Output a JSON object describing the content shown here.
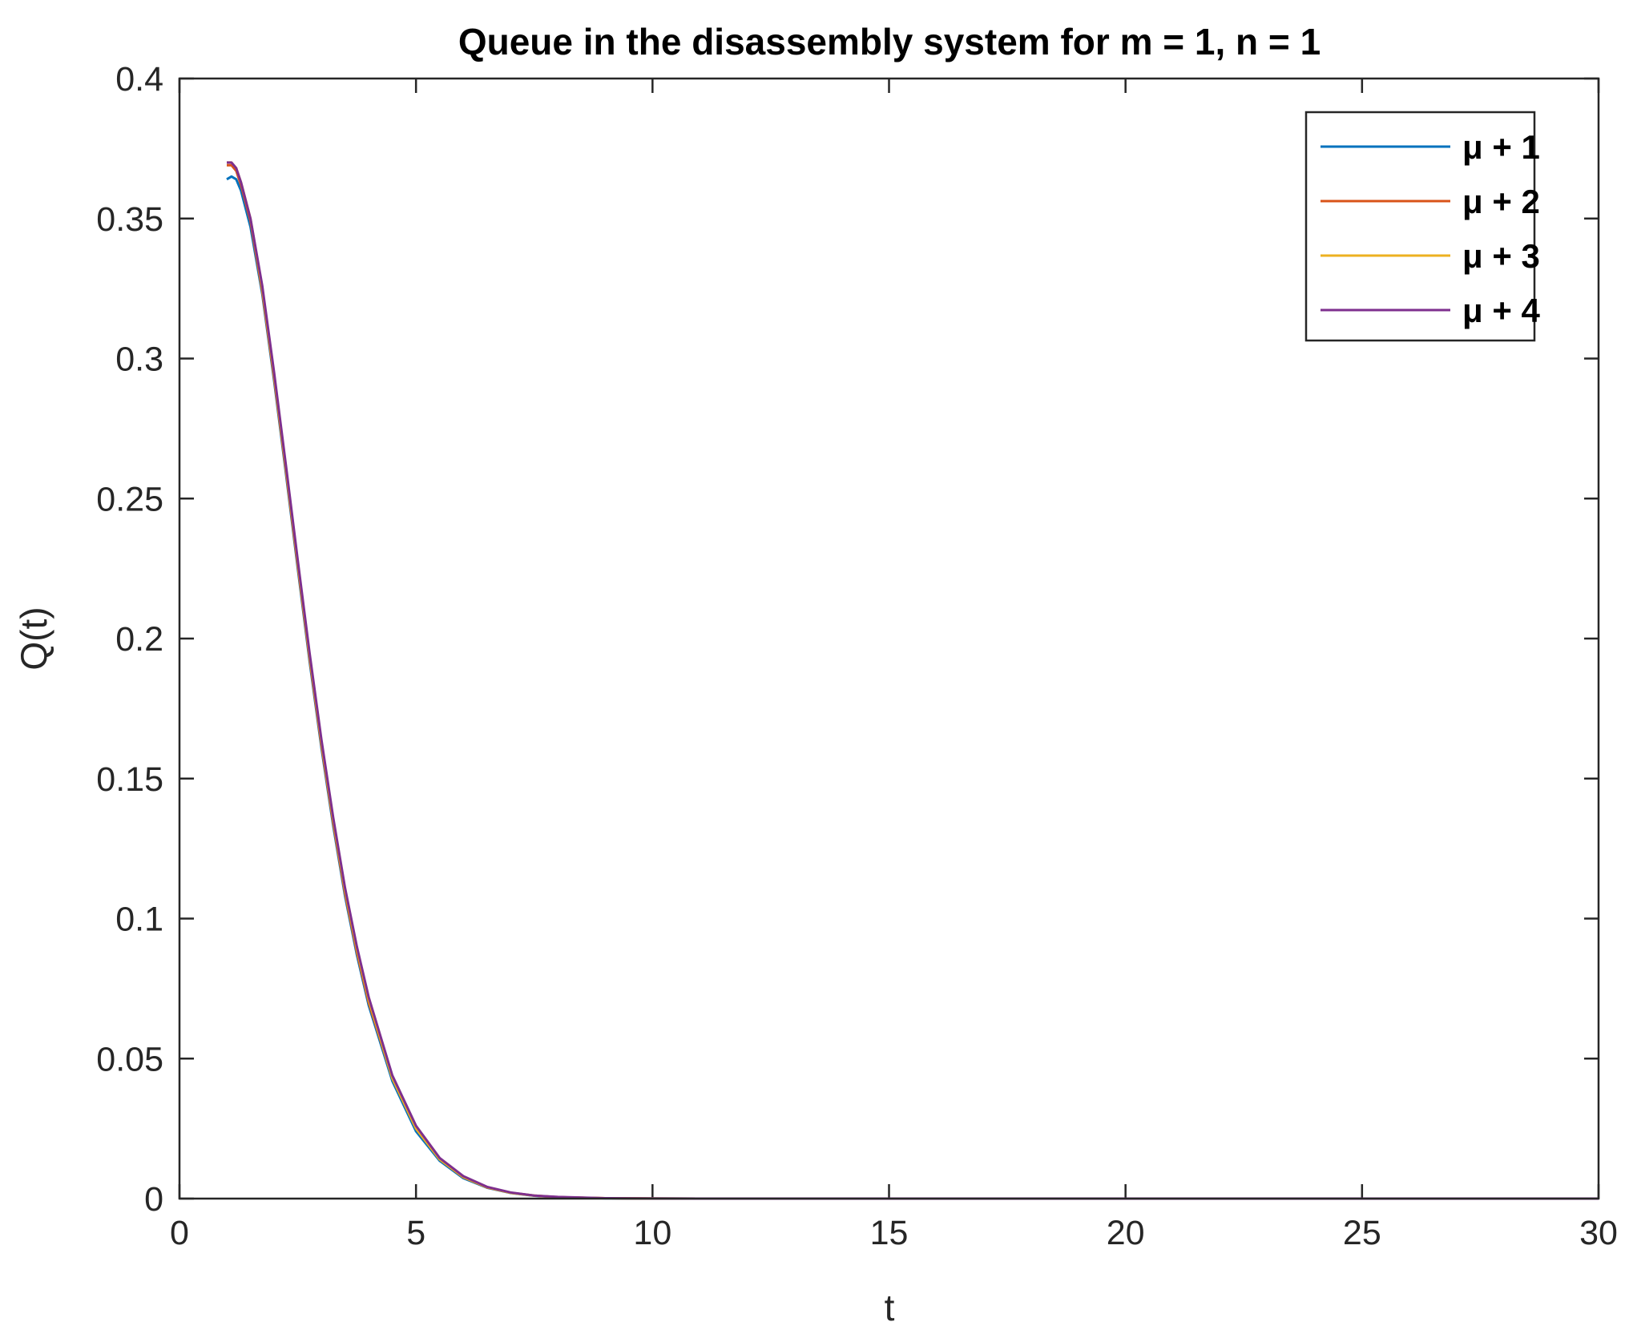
{
  "chart_data": {
    "type": "line",
    "title": "Queue in the disassembly system for m = 1, n = 1",
    "xlabel": "t",
    "ylabel": "Q(t)",
    "xlim": [
      0,
      30
    ],
    "ylim": [
      0,
      0.4
    ],
    "xticks": [
      0,
      5,
      10,
      15,
      20,
      25,
      30
    ],
    "xtick_labels": [
      "0",
      "5",
      "10",
      "15",
      "20",
      "25",
      "30"
    ],
    "yticks": [
      0,
      0.05,
      0.1,
      0.15,
      0.2,
      0.25,
      0.3,
      0.35,
      0.4
    ],
    "ytick_labels": [
      "0",
      "0.05",
      "0.1",
      "0.15",
      "0.2",
      "0.25",
      "0.3",
      "0.35",
      "0.4"
    ],
    "grid": false,
    "legend_position": "top-right",
    "series": [
      {
        "name": "μ + 1",
        "color": "#0072BD",
        "x": [
          1.0,
          1.1,
          1.2,
          1.3,
          1.5,
          1.75,
          2.0,
          2.25,
          2.5,
          2.75,
          3.0,
          3.25,
          3.5,
          3.75,
          4.0,
          4.5,
          5.0,
          5.5,
          6.0,
          6.5,
          7.0,
          7.5,
          8.0,
          9.0,
          10.0,
          11.0,
          12.0,
          14.0,
          16.0,
          20.0,
          25.0,
          30.0
        ],
        "y": [
          0.364,
          0.365,
          0.364,
          0.36,
          0.347,
          0.323,
          0.292,
          0.259,
          0.225,
          0.192,
          0.161,
          0.133,
          0.108,
          0.087,
          0.069,
          0.042,
          0.024,
          0.0135,
          0.0073,
          0.0039,
          0.002,
          0.001,
          0.0005,
          0.00012,
          3e-05,
          1e-05,
          0.0,
          0.0,
          0.0,
          0.0,
          0.0,
          0.0
        ]
      },
      {
        "name": "μ + 2",
        "color": "#D95319",
        "x": [
          1.0,
          1.1,
          1.2,
          1.3,
          1.5,
          1.75,
          2.0,
          2.25,
          2.5,
          2.75,
          3.0,
          3.25,
          3.5,
          3.75,
          4.0,
          4.5,
          5.0,
          5.5,
          6.0,
          6.5,
          7.0,
          7.5,
          8.0,
          9.0,
          10.0,
          11.0,
          12.0,
          14.0,
          16.0,
          20.0,
          25.0,
          30.0
        ],
        "y": [
          0.369,
          0.369,
          0.367,
          0.362,
          0.349,
          0.324,
          0.293,
          0.26,
          0.226,
          0.193,
          0.162,
          0.134,
          0.109,
          0.088,
          0.07,
          0.043,
          0.025,
          0.014,
          0.0076,
          0.004,
          0.0021,
          0.0011,
          0.0005,
          0.00013,
          3e-05,
          1e-05,
          0.0,
          0.0,
          0.0,
          0.0,
          0.0,
          0.0
        ]
      },
      {
        "name": "μ + 3",
        "color": "#EDB120",
        "x": [
          1.0,
          1.1,
          1.2,
          1.3,
          1.5,
          1.75,
          2.0,
          2.25,
          2.5,
          2.75,
          3.0,
          3.25,
          3.5,
          3.75,
          4.0,
          4.5,
          5.0,
          5.5,
          6.0,
          6.5,
          7.0,
          7.5,
          8.0,
          9.0,
          10.0,
          11.0,
          12.0,
          14.0,
          16.0,
          20.0,
          25.0,
          30.0
        ],
        "y": [
          0.37,
          0.37,
          0.368,
          0.363,
          0.35,
          0.325,
          0.294,
          0.261,
          0.227,
          0.194,
          0.163,
          0.135,
          0.11,
          0.089,
          0.071,
          0.043,
          0.025,
          0.014,
          0.0077,
          0.0041,
          0.0021,
          0.0011,
          0.0005,
          0.00013,
          3e-05,
          1e-05,
          0.0,
          0.0,
          0.0,
          0.0,
          0.0,
          0.0
        ]
      },
      {
        "name": "μ + 4",
        "color": "#7E2F8E",
        "x": [
          1.0,
          1.1,
          1.2,
          1.3,
          1.5,
          1.75,
          2.0,
          2.25,
          2.5,
          2.75,
          3.0,
          3.25,
          3.5,
          3.75,
          4.0,
          4.5,
          5.0,
          5.5,
          6.0,
          6.5,
          7.0,
          7.5,
          8.0,
          9.0,
          10.0,
          11.0,
          12.0,
          14.0,
          16.0,
          20.0,
          25.0,
          30.0
        ],
        "y": [
          0.37,
          0.37,
          0.368,
          0.363,
          0.35,
          0.326,
          0.295,
          0.262,
          0.228,
          0.195,
          0.164,
          0.136,
          0.111,
          0.09,
          0.072,
          0.044,
          0.026,
          0.0145,
          0.008,
          0.0042,
          0.0022,
          0.0011,
          0.0006,
          0.00014,
          3e-05,
          1e-05,
          0.0,
          0.0,
          0.0,
          0.0,
          0.0,
          0.0
        ]
      }
    ]
  }
}
